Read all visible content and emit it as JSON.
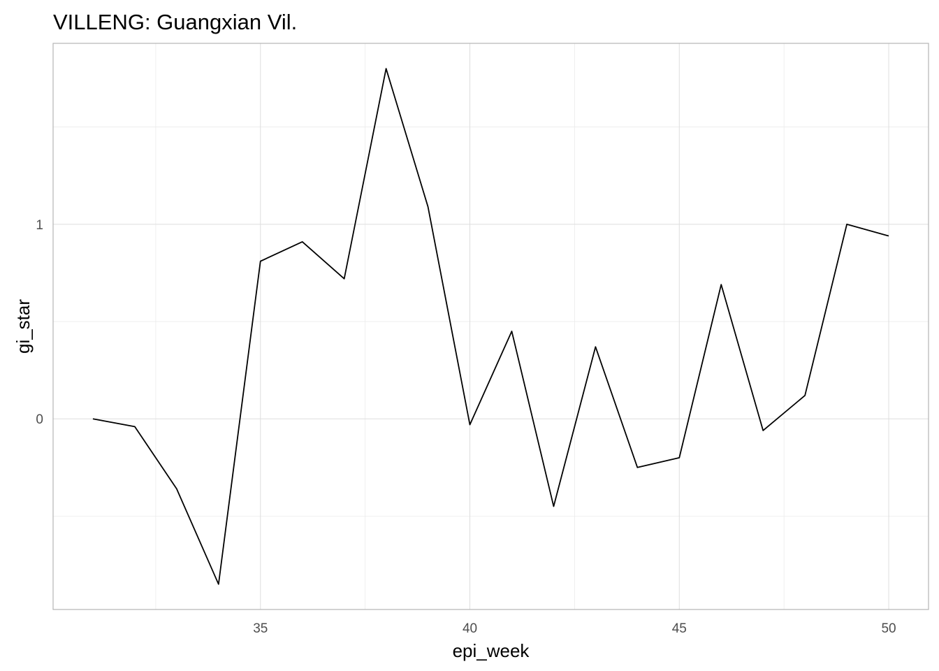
{
  "chart_data": {
    "type": "line",
    "title": "VILLENG: Guangxian Vil.",
    "xlabel": "epi_week",
    "ylabel": "gi_star",
    "xlim": [
      30.05,
      50.95
    ],
    "ylim": [
      -0.98,
      1.93
    ],
    "x_ticks": [
      35,
      40,
      45,
      50
    ],
    "x_tick_labels": [
      "35",
      "40",
      "45",
      "50"
    ],
    "x_minor_ticks": [
      32.5,
      37.5,
      42.5,
      47.5
    ],
    "y_ticks": [
      0,
      1
    ],
    "y_tick_labels": [
      "0",
      "1"
    ],
    "y_minor_ticks": [
      -0.5,
      0.5,
      1.5
    ],
    "grid": true,
    "series": [
      {
        "color": "#000000",
        "x": [
          31,
          32,
          33,
          34,
          35,
          36,
          37,
          38,
          39,
          40,
          41,
          42,
          43,
          44,
          45,
          46,
          47,
          48,
          49,
          50
        ],
        "y": [
          0.0,
          -0.04,
          -0.36,
          -0.85,
          0.81,
          0.91,
          0.72,
          1.8,
          1.09,
          -0.03,
          0.45,
          -0.45,
          0.37,
          -0.25,
          -0.2,
          0.69,
          -0.06,
          0.12,
          1.0,
          0.94
        ]
      }
    ]
  }
}
